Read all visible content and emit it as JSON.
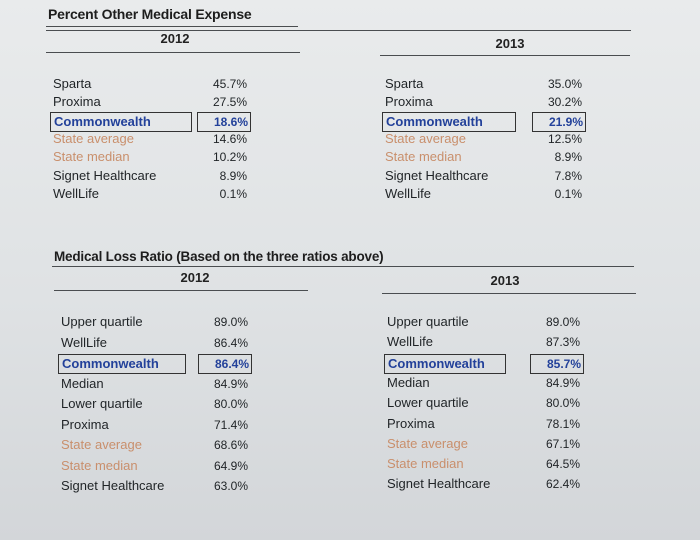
{
  "pct": {
    "title": "Percent Other Medical Expense",
    "y2012": {
      "year": "2012",
      "rows": [
        {
          "label": "Sparta",
          "value": "45.7%"
        },
        {
          "label": "Proxima",
          "value": "27.5%"
        },
        {
          "label": "Commonwealth",
          "value": "18.6%"
        },
        {
          "label": "State average",
          "value": "14.6%"
        },
        {
          "label": "State median",
          "value": "10.2%"
        },
        {
          "label": "Signet Healthcare",
          "value": "8.9%"
        },
        {
          "label": "WellLife",
          "value": "0.1%"
        }
      ]
    },
    "y2013": {
      "year": "2013",
      "rows": [
        {
          "label": "Sparta",
          "value": "35.0%"
        },
        {
          "label": "Proxima",
          "value": "30.2%"
        },
        {
          "label": "Commonwealth",
          "value": "21.9%"
        },
        {
          "label": "State average",
          "value": "12.5%"
        },
        {
          "label": "State median",
          "value": "8.9%"
        },
        {
          "label": "Signet Healthcare",
          "value": "7.8%"
        },
        {
          "label": "WellLife",
          "value": "0.1%"
        }
      ]
    }
  },
  "mlr": {
    "title": "Medical Loss Ratio (Based on the three ratios above)",
    "y2012": {
      "year": "2012",
      "rows": [
        {
          "label": "Upper quartile",
          "value": "89.0%"
        },
        {
          "label": "WellLife",
          "value": "86.4%"
        },
        {
          "label": "Commonwealth",
          "value": "86.4%"
        },
        {
          "label": "Median",
          "value": "84.9%"
        },
        {
          "label": "Lower quartile",
          "value": "80.0%"
        },
        {
          "label": "Proxima",
          "value": "71.4%"
        },
        {
          "label": "State average",
          "value": "68.6%"
        },
        {
          "label": "State median",
          "value": "64.9%"
        },
        {
          "label": "Signet Healthcare",
          "value": "63.0%"
        }
      ]
    },
    "y2013": {
      "year": "2013",
      "rows": [
        {
          "label": "Upper quartile",
          "value": "89.0%"
        },
        {
          "label": "WellLife",
          "value": "87.3%"
        },
        {
          "label": "Commonwealth",
          "value": "85.7%"
        },
        {
          "label": "Median",
          "value": "84.9%"
        },
        {
          "label": "Lower quartile",
          "value": "80.0%"
        },
        {
          "label": "Proxima",
          "value": "78.1%"
        },
        {
          "label": "State average",
          "value": "67.1%"
        },
        {
          "label": "State median",
          "value": "64.5%"
        },
        {
          "label": "Signet Healthcare",
          "value": "62.4%"
        }
      ]
    }
  },
  "colors": {
    "state_rows": "#c98f6c",
    "highlight": "#23419a",
    "text": "#1f2326"
  }
}
